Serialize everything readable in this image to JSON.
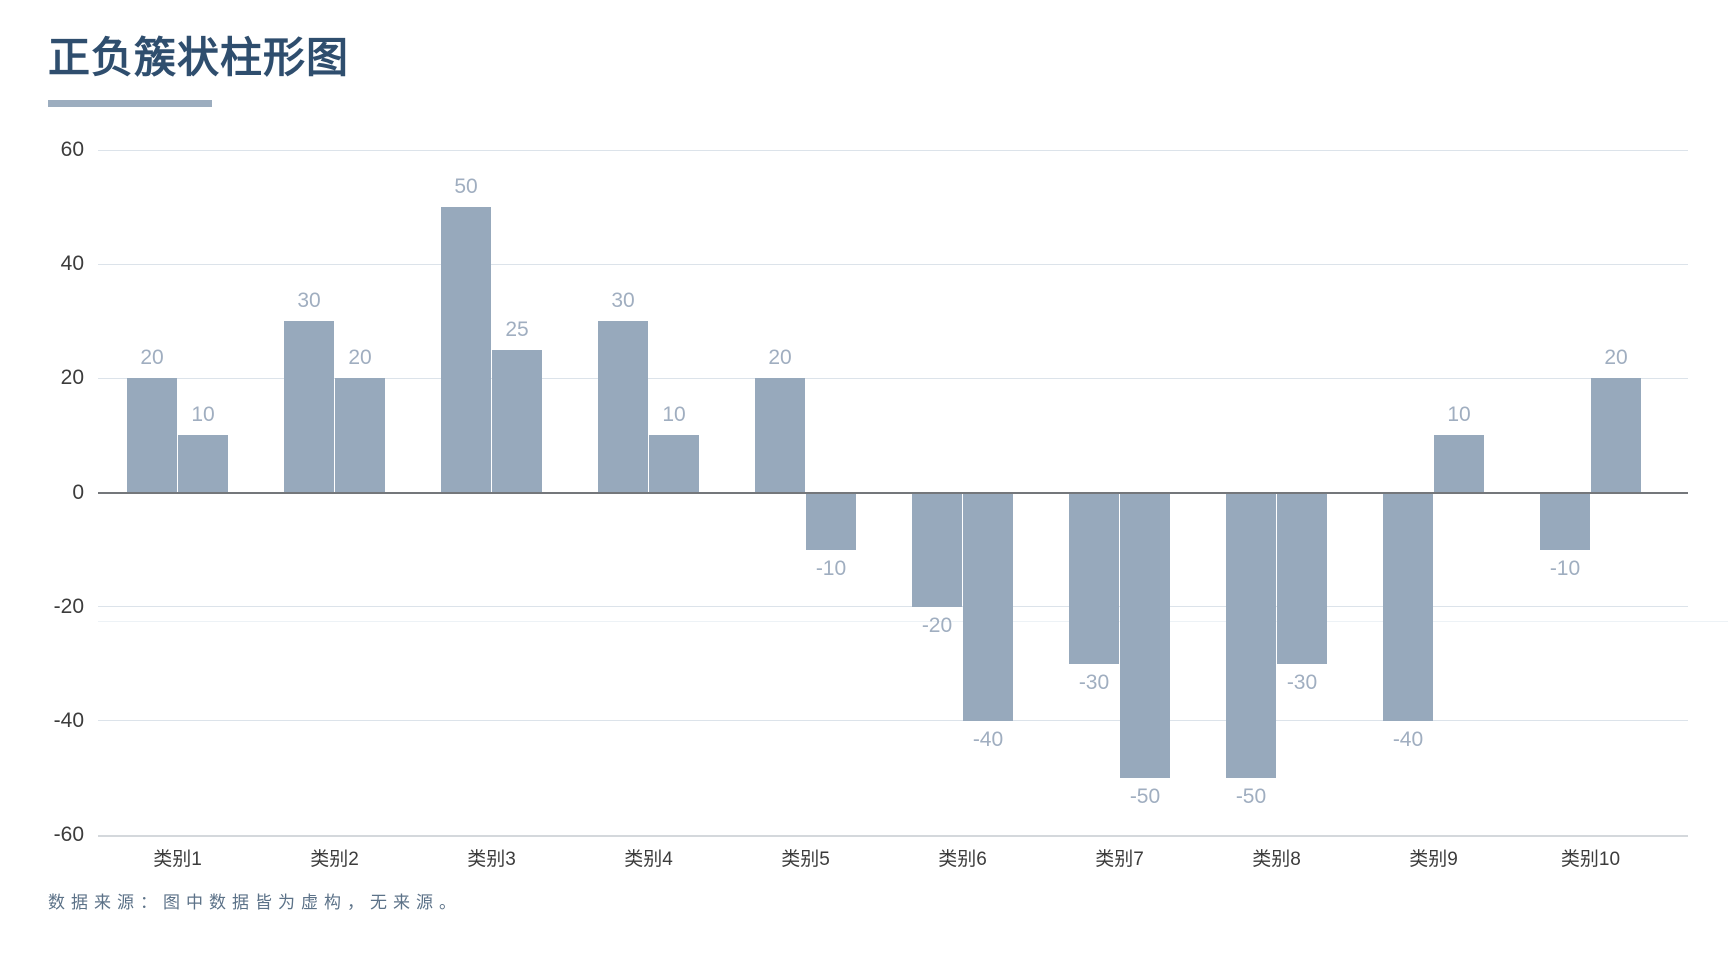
{
  "page": {
    "title": "正负簇状柱形图",
    "footer": "数据来源：图中数据皆为虚构，无来源。"
  },
  "colors": {
    "title": "#2f4e6e",
    "accent_underline": "#9cadbf",
    "bar": "#97a9bc",
    "value_label": "#a0aec0",
    "axis_text": "#3c3c3c",
    "gridline": "#dce3ea",
    "zero_line": "#74777b",
    "footer_text": "#5c7288"
  },
  "chart_data": {
    "type": "bar",
    "title": "正负簇状柱形图",
    "categories": [
      "类别1",
      "类别2",
      "类别3",
      "类别4",
      "类别5",
      "类别6",
      "类别7",
      "类别8",
      "类别9",
      "类别10"
    ],
    "series": [
      {
        "values": [
          20,
          30,
          50,
          30,
          20,
          -20,
          -30,
          -50,
          -40,
          -10
        ]
      },
      {
        "values": [
          10,
          20,
          25,
          10,
          -10,
          -40,
          -50,
          -30,
          10,
          20
        ]
      }
    ],
    "data_labels": true,
    "xlabel": "",
    "ylabel": "",
    "ylim": [
      -60,
      60
    ],
    "yticks": [
      60,
      40,
      20,
      0,
      -20,
      -40,
      -60
    ],
    "grid": true,
    "legend_position": "none",
    "source_note": "数据来源：图中数据皆为虚构，无来源。"
  }
}
